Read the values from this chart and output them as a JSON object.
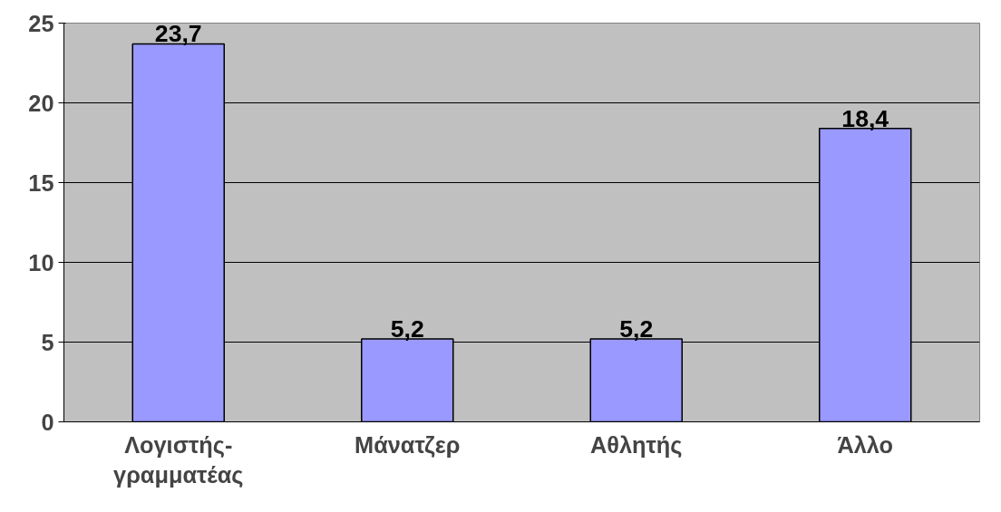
{
  "chart_data": {
    "type": "bar",
    "categories": [
      "Λογιστής-γραμματέας",
      "Μάνατζερ",
      "Αθλητής",
      "Άλλο"
    ],
    "values": [
      23.7,
      5.2,
      5.2,
      18.4
    ],
    "value_labels": [
      "23,7",
      "5,2",
      "5,2",
      "18,4"
    ],
    "color": "#9999ff",
    "ylim": [
      0,
      25
    ],
    "yticks": [
      0,
      5,
      10,
      15,
      20,
      25
    ],
    "grid": "y"
  }
}
